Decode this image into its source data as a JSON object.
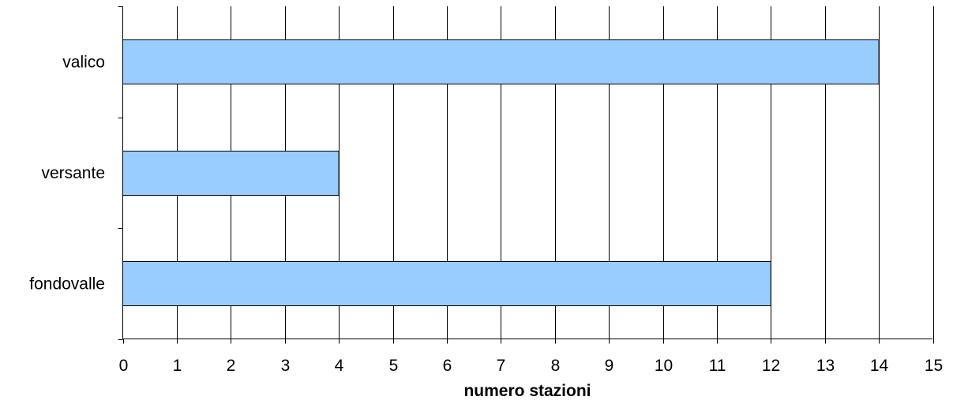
{
  "chart_data": {
    "type": "bar",
    "orientation": "horizontal",
    "categories": [
      "valico",
      "versante",
      "fondovalle"
    ],
    "values": [
      14,
      4,
      12
    ],
    "xlabel": "numero stazioni",
    "ylabel": "",
    "xlim": [
      0,
      15
    ],
    "x_ticks": [
      "0",
      "1",
      "2",
      "3",
      "4",
      "5",
      "6",
      "7",
      "8",
      "9",
      "10",
      "11",
      "12",
      "13",
      "14",
      "15"
    ],
    "grid": "vertical",
    "legend": "none",
    "colors": {
      "bar_fill": "#99CCFF",
      "bar_stroke": "#000000",
      "grid": "#000000"
    }
  }
}
